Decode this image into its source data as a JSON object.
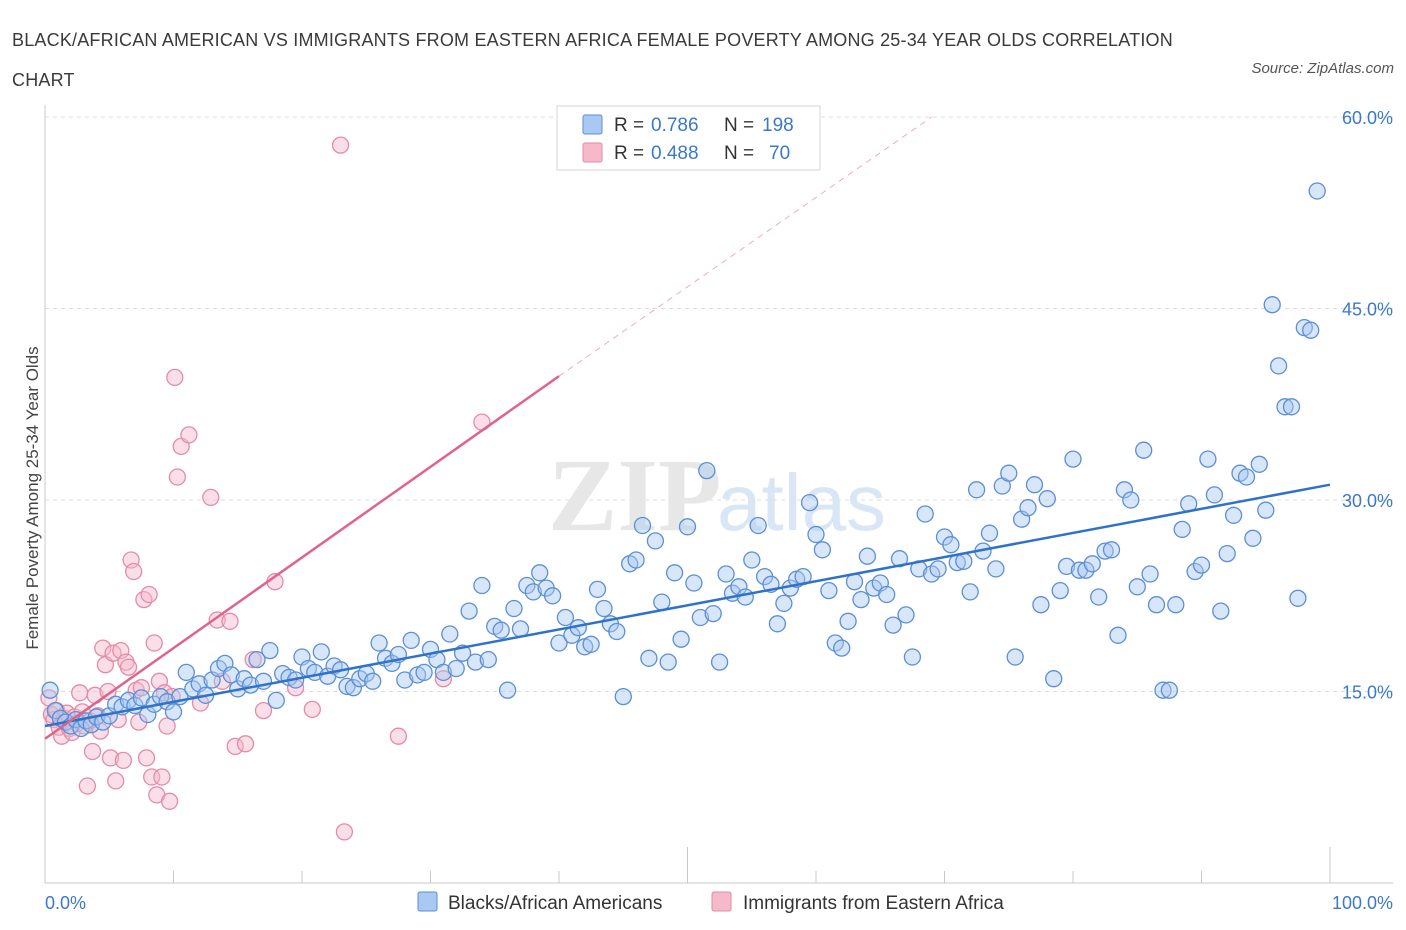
{
  "title": "BLACK/AFRICAN AMERICAN VS IMMIGRANTS FROM EASTERN AFRICA FEMALE POVERTY AMONG 25-34 YEAR OLDS CORRELATION CHART",
  "source": "Source: ZipAtlas.com",
  "watermark": {
    "zip": "ZIP",
    "atlas": "atlas"
  },
  "colors": {
    "blue": "#5b8fd6",
    "blue_fill": "#a9c8f2",
    "blue_line": "#2f72c9",
    "pink": "#e68aa5",
    "pink_fill": "#f6b8cb",
    "pink_line": "#e0638c",
    "value_text": "#3b78c8",
    "grid": "#dcdcdc"
  },
  "legend_top": {
    "rows": [
      {
        "r_label": "R = ",
        "r_value": "0.786",
        "n_label": "N = ",
        "n_value": "198"
      },
      {
        "r_label": "R = ",
        "r_value": "0.488",
        "n_label": "N = ",
        "n_value": "70"
      }
    ]
  },
  "chart_data": {
    "type": "scatter",
    "xlabel": "",
    "ylabel": "Female Poverty Among 25-34 Year Olds",
    "xlim": [
      0,
      100
    ],
    "ylim": [
      0,
      60
    ],
    "x_tick_labels": [
      {
        "value": 0,
        "label": "0.0%"
      },
      {
        "value": 100,
        "label": "100.0%"
      }
    ],
    "y_tick_labels": [
      {
        "value": 15,
        "label": "15.0%"
      },
      {
        "value": 30,
        "label": "30.0%"
      },
      {
        "value": 45,
        "label": "45.0%"
      },
      {
        "value": 60,
        "label": "60.0%"
      }
    ],
    "grid": "horizontal dashed",
    "legend_placement": "bottom-center",
    "series": [
      {
        "name": "Blacks/African Americans",
        "color": "#5b8fd6",
        "r": 0.786,
        "n": 198,
        "trend": {
          "x": [
            0,
            100
          ],
          "y": [
            12.3,
            31.2
          ]
        },
        "points": [
          [
            0.4,
            15.1
          ],
          [
            0.8,
            13.5
          ],
          [
            1.2,
            12.9
          ],
          [
            1.6,
            12.6
          ],
          [
            2.0,
            12.3
          ],
          [
            2.4,
            12.8
          ],
          [
            2.8,
            12.1
          ],
          [
            3.2,
            12.7
          ],
          [
            3.6,
            12.4
          ],
          [
            4.0,
            13.0
          ],
          [
            4.5,
            12.6
          ],
          [
            5.0,
            13.1
          ],
          [
            5.5,
            14.0
          ],
          [
            6.0,
            13.8
          ],
          [
            6.5,
            14.3
          ],
          [
            7.0,
            13.9
          ],
          [
            7.5,
            14.5
          ],
          [
            8.0,
            13.2
          ],
          [
            8.5,
            14.0
          ],
          [
            9.0,
            14.6
          ],
          [
            9.5,
            14.2
          ],
          [
            10.0,
            13.4
          ],
          [
            10.5,
            14.6
          ],
          [
            11.0,
            16.5
          ],
          [
            11.5,
            15.2
          ],
          [
            12.0,
            15.6
          ],
          [
            12.5,
            14.7
          ],
          [
            13.0,
            15.9
          ],
          [
            13.5,
            16.8
          ],
          [
            14.0,
            17.2
          ],
          [
            14.5,
            16.3
          ],
          [
            15.0,
            15.2
          ],
          [
            15.5,
            16.0
          ],
          [
            16.0,
            15.5
          ],
          [
            16.5,
            17.5
          ],
          [
            17.0,
            15.8
          ],
          [
            17.5,
            18.2
          ],
          [
            18.0,
            14.3
          ],
          [
            18.5,
            16.4
          ],
          [
            19.0,
            16.1
          ],
          [
            19.5,
            15.9
          ],
          [
            20.0,
            17.7
          ],
          [
            20.5,
            16.8
          ],
          [
            21.0,
            16.5
          ],
          [
            21.5,
            18.1
          ],
          [
            22.0,
            16.2
          ],
          [
            22.5,
            17.0
          ],
          [
            23.0,
            16.7
          ],
          [
            23.5,
            15.4
          ],
          [
            24.0,
            15.3
          ],
          [
            24.5,
            16.0
          ],
          [
            25.0,
            16.4
          ],
          [
            25.5,
            15.8
          ],
          [
            26.0,
            18.8
          ],
          [
            26.5,
            17.6
          ],
          [
            27.0,
            17.2
          ],
          [
            27.5,
            17.9
          ],
          [
            28.0,
            15.9
          ],
          [
            28.5,
            19.0
          ],
          [
            29.0,
            16.3
          ],
          [
            29.5,
            16.5
          ],
          [
            30.0,
            18.3
          ],
          [
            30.5,
            17.5
          ],
          [
            31.0,
            16.5
          ],
          [
            31.5,
            19.5
          ],
          [
            32.0,
            16.8
          ],
          [
            32.5,
            18.0
          ],
          [
            33.0,
            21.3
          ],
          [
            33.5,
            17.3
          ],
          [
            34.0,
            23.3
          ],
          [
            34.5,
            17.5
          ],
          [
            35.0,
            20.1
          ],
          [
            35.5,
            19.8
          ],
          [
            36.0,
            15.1
          ],
          [
            36.5,
            21.5
          ],
          [
            37.0,
            19.9
          ],
          [
            37.5,
            23.3
          ],
          [
            38.0,
            22.8
          ],
          [
            38.5,
            24.3
          ],
          [
            39.0,
            23.1
          ],
          [
            39.5,
            22.5
          ],
          [
            40.0,
            18.8
          ],
          [
            40.5,
            20.8
          ],
          [
            41.0,
            19.4
          ],
          [
            41.5,
            20.0
          ],
          [
            42.0,
            18.5
          ],
          [
            42.5,
            18.7
          ],
          [
            43.0,
            23.0
          ],
          [
            43.5,
            21.5
          ],
          [
            44.0,
            20.3
          ],
          [
            44.5,
            19.7
          ],
          [
            45.0,
            14.6
          ],
          [
            45.5,
            25.0
          ],
          [
            46.0,
            25.3
          ],
          [
            46.5,
            28.0
          ],
          [
            47.0,
            17.6
          ],
          [
            47.5,
            26.8
          ],
          [
            48.0,
            22.0
          ],
          [
            48.5,
            17.3
          ],
          [
            49.0,
            24.3
          ],
          [
            49.5,
            19.1
          ],
          [
            50.0,
            27.9
          ],
          [
            50.5,
            23.5
          ],
          [
            51.0,
            20.8
          ],
          [
            51.5,
            32.3
          ],
          [
            52.0,
            21.1
          ],
          [
            52.5,
            17.3
          ],
          [
            53.0,
            24.2
          ],
          [
            53.5,
            22.7
          ],
          [
            54.0,
            23.2
          ],
          [
            54.5,
            22.4
          ],
          [
            55.0,
            25.3
          ],
          [
            55.5,
            28.0
          ],
          [
            56.0,
            24.0
          ],
          [
            56.5,
            23.4
          ],
          [
            57.0,
            20.3
          ],
          [
            57.5,
            21.9
          ],
          [
            58.0,
            23.1
          ],
          [
            58.5,
            23.8
          ],
          [
            59.0,
            24.0
          ],
          [
            59.5,
            29.8
          ],
          [
            60.0,
            27.3
          ],
          [
            60.5,
            26.1
          ],
          [
            61.0,
            22.9
          ],
          [
            61.5,
            18.8
          ],
          [
            62.0,
            18.4
          ],
          [
            62.5,
            20.5
          ],
          [
            63.0,
            23.6
          ],
          [
            63.5,
            22.2
          ],
          [
            64.0,
            25.6
          ],
          [
            64.5,
            23.1
          ],
          [
            65.0,
            23.5
          ],
          [
            65.5,
            22.6
          ],
          [
            66.0,
            20.2
          ],
          [
            66.5,
            25.4
          ],
          [
            67.0,
            21.0
          ],
          [
            67.5,
            17.7
          ],
          [
            68.0,
            24.6
          ],
          [
            68.5,
            28.9
          ],
          [
            69.0,
            24.2
          ],
          [
            69.5,
            24.6
          ],
          [
            70.0,
            27.1
          ],
          [
            70.5,
            26.5
          ],
          [
            71.0,
            25.1
          ],
          [
            71.5,
            25.2
          ],
          [
            72.0,
            22.8
          ],
          [
            72.5,
            30.8
          ],
          [
            73.0,
            26.0
          ],
          [
            73.5,
            27.4
          ],
          [
            74.0,
            24.6
          ],
          [
            74.5,
            31.1
          ],
          [
            75.0,
            32.1
          ],
          [
            75.5,
            17.7
          ],
          [
            76.0,
            28.5
          ],
          [
            76.5,
            29.4
          ],
          [
            77.0,
            31.2
          ],
          [
            77.5,
            21.8
          ],
          [
            78.0,
            30.1
          ],
          [
            78.5,
            16.0
          ],
          [
            79.0,
            22.9
          ],
          [
            79.5,
            24.8
          ],
          [
            80.0,
            33.2
          ],
          [
            80.5,
            24.5
          ],
          [
            81.0,
            24.5
          ],
          [
            81.5,
            25.0
          ],
          [
            82.0,
            22.4
          ],
          [
            82.5,
            26.0
          ],
          [
            83.0,
            26.1
          ],
          [
            83.5,
            19.4
          ],
          [
            84.0,
            30.8
          ],
          [
            84.5,
            30.0
          ],
          [
            85.0,
            23.2
          ],
          [
            85.5,
            33.9
          ],
          [
            86.0,
            24.2
          ],
          [
            86.5,
            21.8
          ],
          [
            87.0,
            15.1
          ],
          [
            87.5,
            15.1
          ],
          [
            88.0,
            21.8
          ],
          [
            88.5,
            27.7
          ],
          [
            89.0,
            29.7
          ],
          [
            89.5,
            24.4
          ],
          [
            90.0,
            24.9
          ],
          [
            90.5,
            33.2
          ],
          [
            91.0,
            30.4
          ],
          [
            91.5,
            21.3
          ],
          [
            92.0,
            25.8
          ],
          [
            92.5,
            28.8
          ],
          [
            93.0,
            32.1
          ],
          [
            93.5,
            31.8
          ],
          [
            94.0,
            27.0
          ],
          [
            94.5,
            32.8
          ],
          [
            95.0,
            29.2
          ],
          [
            95.5,
            45.3
          ],
          [
            96.0,
            40.5
          ],
          [
            96.5,
            37.3
          ],
          [
            97.0,
            37.3
          ],
          [
            97.5,
            22.3
          ],
          [
            98.0,
            43.5
          ],
          [
            98.5,
            43.3
          ],
          [
            99.0,
            54.2
          ]
        ]
      },
      {
        "name": "Immigrants from Eastern Africa",
        "color": "#e68aa5",
        "r": 0.488,
        "n": 70,
        "trend": {
          "x": [
            0,
            40
          ],
          "y": [
            11.3,
            39.7
          ]
        },
        "trend_extension": {
          "x": [
            40,
            69
          ],
          "y": [
            39.7,
            60.0
          ]
        },
        "points": [
          [
            0.3,
            14.5
          ],
          [
            0.5,
            13.2
          ],
          [
            0.7,
            12.8
          ],
          [
            0.9,
            13.5
          ],
          [
            1.1,
            12.2
          ],
          [
            1.3,
            11.5
          ],
          [
            1.5,
            12.9
          ],
          [
            1.7,
            13.3
          ],
          [
            1.9,
            12.1
          ],
          [
            2.1,
            11.8
          ],
          [
            2.3,
            13.0
          ],
          [
            2.5,
            12.5
          ],
          [
            2.7,
            14.9
          ],
          [
            2.9,
            13.4
          ],
          [
            3.1,
            12.3
          ],
          [
            3.3,
            7.6
          ],
          [
            3.5,
            12.7
          ],
          [
            3.7,
            10.3
          ],
          [
            3.9,
            14.7
          ],
          [
            4.1,
            13.1
          ],
          [
            4.3,
            11.9
          ],
          [
            4.5,
            18.4
          ],
          [
            4.7,
            17.1
          ],
          [
            4.9,
            15.0
          ],
          [
            5.1,
            9.8
          ],
          [
            5.3,
            18.0
          ],
          [
            5.5,
            8.0
          ],
          [
            5.7,
            12.8
          ],
          [
            5.9,
            18.2
          ],
          [
            6.1,
            9.6
          ],
          [
            6.3,
            17.3
          ],
          [
            6.5,
            16.9
          ],
          [
            6.7,
            25.3
          ],
          [
            6.9,
            24.4
          ],
          [
            7.1,
            15.1
          ],
          [
            7.3,
            12.6
          ],
          [
            7.5,
            15.3
          ],
          [
            7.7,
            22.2
          ],
          [
            7.9,
            9.8
          ],
          [
            8.1,
            22.6
          ],
          [
            8.3,
            8.3
          ],
          [
            8.5,
            18.8
          ],
          [
            8.7,
            6.9
          ],
          [
            8.9,
            15.8
          ],
          [
            9.1,
            8.3
          ],
          [
            9.3,
            14.9
          ],
          [
            9.5,
            12.3
          ],
          [
            9.7,
            6.4
          ],
          [
            9.9,
            14.6
          ],
          [
            10.1,
            39.6
          ],
          [
            10.3,
            31.8
          ],
          [
            10.6,
            34.2
          ],
          [
            11.2,
            35.1
          ],
          [
            12.1,
            14.1
          ],
          [
            12.9,
            30.2
          ],
          [
            13.4,
            20.6
          ],
          [
            13.8,
            15.8
          ],
          [
            14.4,
            20.5
          ],
          [
            14.8,
            10.7
          ],
          [
            15.6,
            10.9
          ],
          [
            16.2,
            17.5
          ],
          [
            17.0,
            13.5
          ],
          [
            17.9,
            23.6
          ],
          [
            19.5,
            15.3
          ],
          [
            20.8,
            13.6
          ],
          [
            23.0,
            57.8
          ],
          [
            23.3,
            4.0
          ],
          [
            27.5,
            11.5
          ],
          [
            31.0,
            16.0
          ],
          [
            34.0,
            36.1
          ]
        ]
      }
    ]
  }
}
